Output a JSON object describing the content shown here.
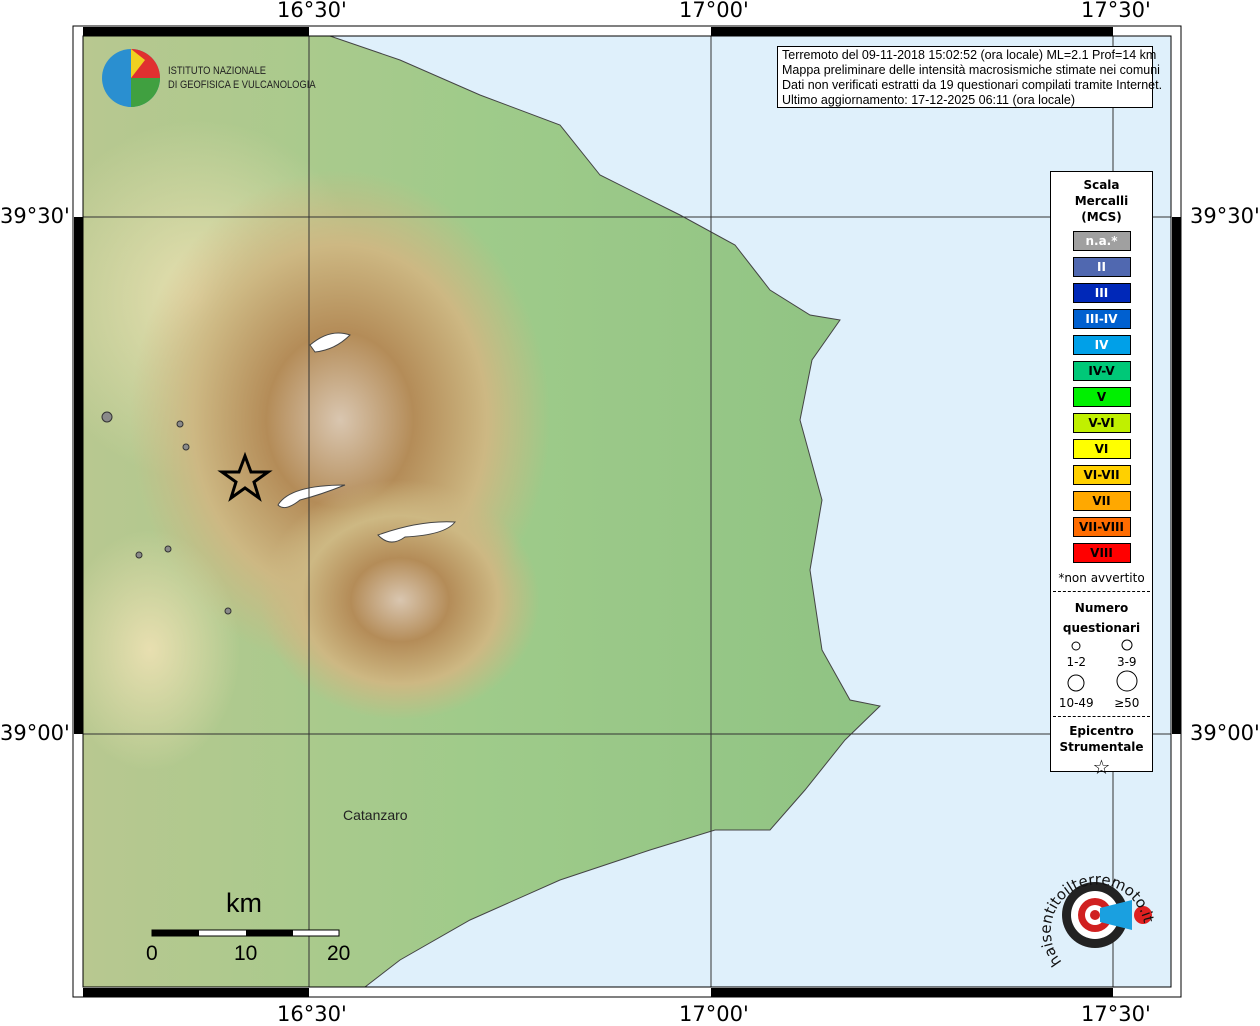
{
  "axes": {
    "lon_ticks": [
      "16°30'",
      "17°00'",
      "17°30'"
    ],
    "lat_ticks": [
      "39°30'",
      "39°00'"
    ]
  },
  "info": {
    "lines": [
      "Terremoto del 09-11-2018 15:02:52 (ora locale) ML=2.1 Prof=14 km",
      "Mappa preliminare delle intensità macrosismiche stimate nei comuni",
      "Dati non verificati estratti da 19 questionari compilati tramite Internet.",
      "Ultimo aggiornamento: 17-12-2025 06:11 (ora locale)"
    ]
  },
  "ingv": {
    "line1": "ISTITUTO NAZIONALE",
    "line2": "DI GEOFISICA E VULCANOLOGIA"
  },
  "legend": {
    "title": [
      "Scala",
      "Mercalli",
      "(MCS)"
    ],
    "scale": [
      {
        "label": "n.a.*",
        "color": "#a0a0a0",
        "text": "#fff"
      },
      {
        "label": "II",
        "color": "#5068b0",
        "text": "#fff"
      },
      {
        "label": "III",
        "color": "#0028b8",
        "text": "#fff"
      },
      {
        "label": "III-IV",
        "color": "#0060d0",
        "text": "#fff"
      },
      {
        "label": "IV",
        "color": "#00a0e8",
        "text": "#fff"
      },
      {
        "label": "IV-V",
        "color": "#00c878",
        "text": "#000"
      },
      {
        "label": "V",
        "color": "#00f000",
        "text": "#000"
      },
      {
        "label": "V-VI",
        "color": "#c0f000",
        "text": "#000"
      },
      {
        "label": "VI",
        "color": "#ffff00",
        "text": "#000"
      },
      {
        "label": "VI-VII",
        "color": "#ffd000",
        "text": "#000"
      },
      {
        "label": "VII",
        "color": "#ffa800",
        "text": "#000"
      },
      {
        "label": "VII-VIII",
        "color": "#ff6c00",
        "text": "#000"
      },
      {
        "label": "VIII",
        "color": "#ff0000",
        "text": "#000"
      }
    ],
    "footnote": "*non avvertito",
    "count_title": [
      "Numero",
      "questionari"
    ],
    "counts": [
      "1-2",
      "3-9",
      "10-49",
      "≥50"
    ],
    "epicenter_title": [
      "Epicentro",
      "Strumentale"
    ]
  },
  "city": "Catanzaro",
  "scalebar": {
    "unit": "km",
    "ticks": [
      "0",
      "10",
      "20"
    ]
  },
  "logo2": "haisentitoilterremoto.it",
  "colors": {
    "sea": "#dff0fb",
    "station": "#8a8a8a"
  }
}
